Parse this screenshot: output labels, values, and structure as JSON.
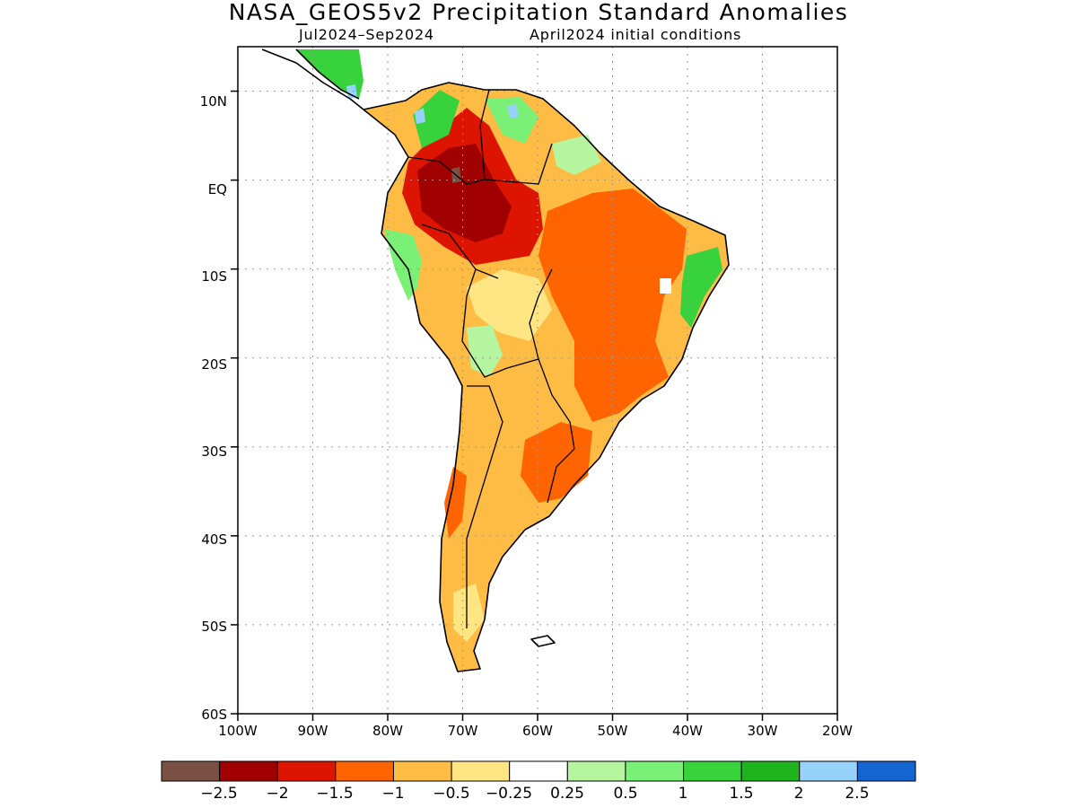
{
  "title": "NASA_GEOS5v2 Precipitation Standard Anomalies",
  "subtitle_period": "Jul2024–Sep2024",
  "subtitle_init": "April2024 initial conditions",
  "axes": {
    "lon_labels": [
      "100W",
      "90W",
      "80W",
      "70W",
      "60W",
      "50W",
      "40W",
      "30W",
      "20W"
    ],
    "lat_labels": [
      "10N",
      "EQ",
      "10S",
      "20S",
      "30S",
      "40S",
      "50S",
      "60S"
    ]
  },
  "colorbar": {
    "labels": [
      "−2.5",
      "−2",
      "−1.5",
      "−1",
      "−0.5",
      "−0.25",
      "0.25",
      "0.5",
      "1",
      "1.5",
      "2",
      "2.5"
    ],
    "colors": [
      "#7b5044",
      "#a00000",
      "#dc1400",
      "#ff6400",
      "#ffbc45",
      "#ffe682",
      "#ffffff",
      "#b5f5a0",
      "#7af076",
      "#37d23c",
      "#1eb41e",
      "#96d2fa",
      "#1464d2"
    ]
  },
  "chart_data": {
    "type": "map",
    "region": "South America",
    "projection": "lat-lon",
    "lon_range": [
      -100,
      -20
    ],
    "lat_range": [
      -60,
      15
    ],
    "variable": "precipitation standard anomaly",
    "anomaly_regions": [
      {
        "area": "Northwestern Amazon / Colombia-Venezuela interior",
        "category": "-2.5 to -1.5"
      },
      {
        "area": "Central and eastern Brazil",
        "category": "-1.5 to -0.5"
      },
      {
        "area": "Southern Brazil / Uruguay",
        "category": "-1.5 to -0.5"
      },
      {
        "area": "Argentina and Chile",
        "category": "-1 to -0.25"
      },
      {
        "area": "Northern Colombia / Venezuela coast",
        "category": "0.5 to 2"
      },
      {
        "area": "Ecuador / Peru coast",
        "category": "0.5 to 1.5"
      },
      {
        "area": "Eastern Brazil coast",
        "category": "0.5 to 2"
      },
      {
        "area": "Bolivia lowlands",
        "category": "0.25 to 1"
      }
    ]
  }
}
